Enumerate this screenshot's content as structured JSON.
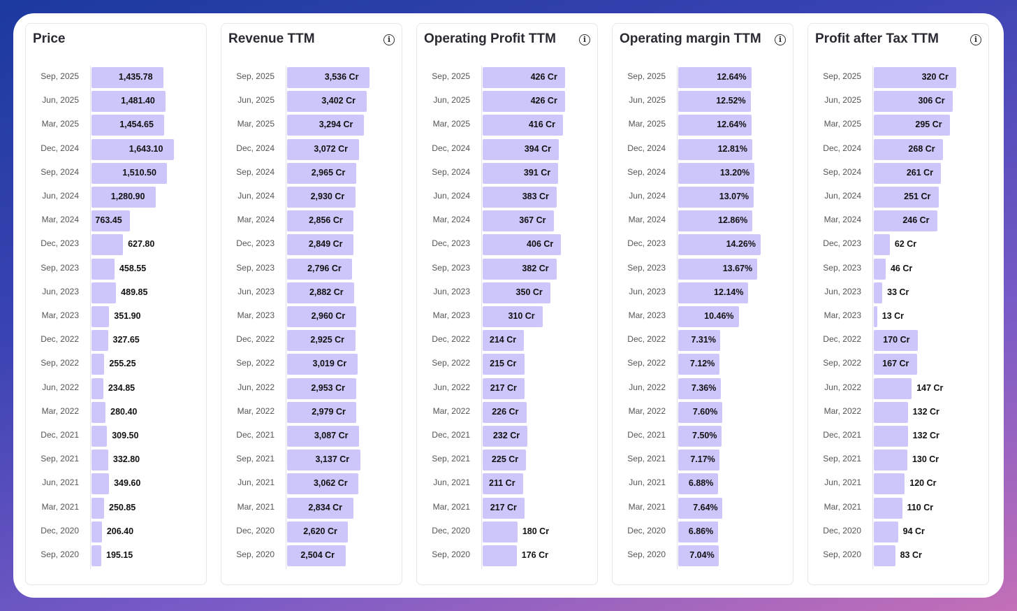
{
  "chart_data": [
    {
      "type": "bar",
      "title": "Price",
      "info_icon": false,
      "categories": [
        "Sep, 2025",
        "Jun, 2025",
        "Mar, 2025",
        "Dec, 2024",
        "Sep, 2024",
        "Jun, 2024",
        "Mar, 2024",
        "Dec, 2023",
        "Sep, 2023",
        "Jun, 2023",
        "Mar, 2023",
        "Dec, 2022",
        "Sep, 2022",
        "Jun, 2022",
        "Mar, 2022",
        "Dec, 2021",
        "Sep, 2021",
        "Jun, 2021",
        "Mar, 2021",
        "Dec, 2020",
        "Sep, 2020"
      ],
      "values": [
        1435.78,
        1481.4,
        1454.65,
        1643.1,
        1510.5,
        1280.9,
        763.45,
        627.8,
        458.55,
        489.85,
        351.9,
        327.65,
        255.25,
        234.85,
        280.4,
        309.5,
        332.8,
        349.6,
        250.85,
        206.4,
        195.15
      ],
      "value_labels": [
        "1,435.78",
        "1,481.40",
        "1,454.65",
        "1,643.10",
        "1,510.50",
        "1,280.90",
        "763.45",
        "627.80",
        "458.55",
        "489.85",
        "351.90",
        "327.65",
        "255.25",
        "234.85",
        "280.40",
        "309.50",
        "332.80",
        "349.60",
        "250.85",
        "206.40",
        "195.15"
      ]
    },
    {
      "type": "bar",
      "title": "Revenue TTM",
      "info_icon": true,
      "categories": [
        "Sep, 2025",
        "Jun, 2025",
        "Mar, 2025",
        "Dec, 2024",
        "Sep, 2024",
        "Jun, 2024",
        "Mar, 2024",
        "Dec, 2023",
        "Sep, 2023",
        "Jun, 2023",
        "Mar, 2023",
        "Dec, 2022",
        "Sep, 2022",
        "Jun, 2022",
        "Mar, 2022",
        "Dec, 2021",
        "Sep, 2021",
        "Jun, 2021",
        "Mar, 2021",
        "Dec, 2020",
        "Sep, 2020"
      ],
      "values": [
        3536,
        3402,
        3294,
        3072,
        2965,
        2930,
        2856,
        2849,
        2796,
        2882,
        2960,
        2925,
        3019,
        2953,
        2979,
        3087,
        3137,
        3062,
        2834,
        2620,
        2504
      ],
      "value_labels": [
        "3,536 Cr",
        "3,402 Cr",
        "3,294 Cr",
        "3,072 Cr",
        "2,965 Cr",
        "2,930 Cr",
        "2,856 Cr",
        "2,849 Cr",
        "2,796 Cr",
        "2,882 Cr",
        "2,960 Cr",
        "2,925 Cr",
        "3,019 Cr",
        "2,953 Cr",
        "2,979 Cr",
        "3,087 Cr",
        "3,137 Cr",
        "3,062 Cr",
        "2,834 Cr",
        "2,620 Cr",
        "2,504 Cr"
      ]
    },
    {
      "type": "bar",
      "title": "Operating Profit TTM",
      "info_icon": true,
      "categories": [
        "Sep, 2025",
        "Jun, 2025",
        "Mar, 2025",
        "Dec, 2024",
        "Sep, 2024",
        "Jun, 2024",
        "Mar, 2024",
        "Dec, 2023",
        "Sep, 2023",
        "Jun, 2023",
        "Mar, 2023",
        "Dec, 2022",
        "Sep, 2022",
        "Jun, 2022",
        "Mar, 2022",
        "Dec, 2021",
        "Sep, 2021",
        "Jun, 2021",
        "Mar, 2021",
        "Dec, 2020",
        "Sep, 2020"
      ],
      "values": [
        426,
        426,
        416,
        394,
        391,
        383,
        367,
        406,
        382,
        350,
        310,
        214,
        215,
        217,
        226,
        232,
        225,
        211,
        217,
        180,
        176
      ],
      "value_labels": [
        "426 Cr",
        "426 Cr",
        "416 Cr",
        "394 Cr",
        "391 Cr",
        "383 Cr",
        "367 Cr",
        "406 Cr",
        "382 Cr",
        "350 Cr",
        "310 Cr",
        "214 Cr",
        "215 Cr",
        "217 Cr",
        "226 Cr",
        "232 Cr",
        "225 Cr",
        "211 Cr",
        "217 Cr",
        "180 Cr",
        "176 Cr"
      ]
    },
    {
      "type": "bar",
      "title": "Operating margin TTM",
      "info_icon": true,
      "categories": [
        "Sep, 2025",
        "Jun, 2025",
        "Mar, 2025",
        "Dec, 2024",
        "Sep, 2024",
        "Jun, 2024",
        "Mar, 2024",
        "Dec, 2023",
        "Sep, 2023",
        "Jun, 2023",
        "Mar, 2023",
        "Dec, 2022",
        "Sep, 2022",
        "Jun, 2022",
        "Mar, 2022",
        "Dec, 2021",
        "Sep, 2021",
        "Jun, 2021",
        "Mar, 2021",
        "Dec, 2020",
        "Sep, 2020"
      ],
      "values": [
        12.64,
        12.52,
        12.64,
        12.81,
        13.2,
        13.07,
        12.86,
        14.26,
        13.67,
        12.14,
        10.46,
        7.31,
        7.12,
        7.36,
        7.6,
        7.5,
        7.17,
        6.88,
        7.64,
        6.86,
        7.04
      ],
      "value_labels": [
        "12.64%",
        "12.52%",
        "12.64%",
        "12.81%",
        "13.20%",
        "13.07%",
        "12.86%",
        "14.26%",
        "13.67%",
        "12.14%",
        "10.46%",
        "7.31%",
        "7.12%",
        "7.36%",
        "7.60%",
        "7.50%",
        "7.17%",
        "6.88%",
        "7.64%",
        "6.86%",
        "7.04%"
      ]
    },
    {
      "type": "bar",
      "title": "Profit after Tax TTM",
      "info_icon": true,
      "categories": [
        "Sep, 2025",
        "Jun, 2025",
        "Mar, 2025",
        "Dec, 2024",
        "Sep, 2024",
        "Jun, 2024",
        "Mar, 2024",
        "Dec, 2023",
        "Sep, 2023",
        "Jun, 2023",
        "Mar, 2023",
        "Dec, 2022",
        "Sep, 2022",
        "Jun, 2022",
        "Mar, 2022",
        "Dec, 2021",
        "Sep, 2021",
        "Jun, 2021",
        "Mar, 2021",
        "Dec, 2020",
        "Sep, 2020"
      ],
      "values": [
        320,
        306,
        295,
        268,
        261,
        251,
        246,
        62,
        46,
        33,
        13,
        170,
        167,
        147,
        132,
        132,
        130,
        120,
        110,
        94,
        83
      ],
      "value_labels": [
        "320 Cr",
        "306 Cr",
        "295 Cr",
        "268 Cr",
        "261 Cr",
        "251 Cr",
        "246 Cr",
        "62 Cr",
        "46 Cr",
        "33 Cr",
        "13 Cr",
        "170 Cr",
        "167 Cr",
        "147 Cr",
        "132 Cr",
        "132 Cr",
        "130 Cr",
        "120 Cr",
        "110 Cr",
        "94 Cr",
        "83 Cr"
      ]
    }
  ],
  "colors": {
    "bar": "#cdc6fb",
    "page_gradient": [
      "#1c3aa0",
      "#c46fb8"
    ]
  },
  "icons": {
    "info": "info-icon"
  }
}
